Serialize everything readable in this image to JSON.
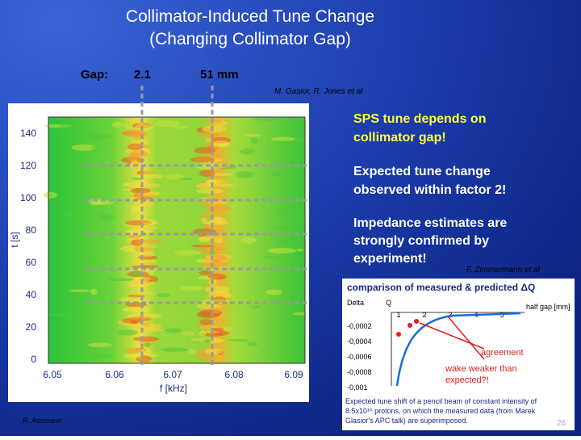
{
  "title": [
    "Collimator-Induced Tune Change",
    "(Changing Collimator Gap)"
  ],
  "gap": {
    "label": "Gap:",
    "values": [
      "2.1",
      "51 mm"
    ]
  },
  "credit": "M. Gasior, R. Jones et al",
  "spectrogram": {
    "y_label": "t [s]",
    "x_label": "f [kHz]",
    "y_ticks": [
      "140",
      "120",
      "100",
      "80",
      "60",
      "40",
      "20",
      "0"
    ],
    "x_ticks": [
      "6.05",
      "6.06",
      "6.07",
      "6.08",
      "6.09"
    ]
  },
  "bullets": [
    [
      "SPS tune depends on",
      "collimator gap!"
    ],
    [
      "Expected tune change",
      "observed within factor 2!"
    ],
    [
      "Impedance estimates are",
      "strongly confirmed by",
      "experiment!"
    ]
  ],
  "bullet_credit": "F. Zimmermann et al",
  "inset": {
    "title": "comparison of measured & predicted ΔQ",
    "y_label": [
      "Delta",
      "Q"
    ],
    "x_label": "half gap [mm]",
    "x_ticks": [
      "1",
      "2",
      "3",
      "4",
      "5"
    ],
    "y_ticks": [
      "-0,0002",
      "-0,0004",
      "-0,0006",
      "-0,0008",
      "-0,001"
    ],
    "annotations": [
      "agreement",
      "wake weaker than",
      "expected?!"
    ],
    "caption": [
      "Expected tune shift of a pencil beam of constant intensity of",
      "8.5x10¹⁰ protons, on which the measured data (from Marek",
      "Glasior's APC talk) are superimposed."
    ]
  },
  "footer": "R. Assmann",
  "page_number": "26"
}
